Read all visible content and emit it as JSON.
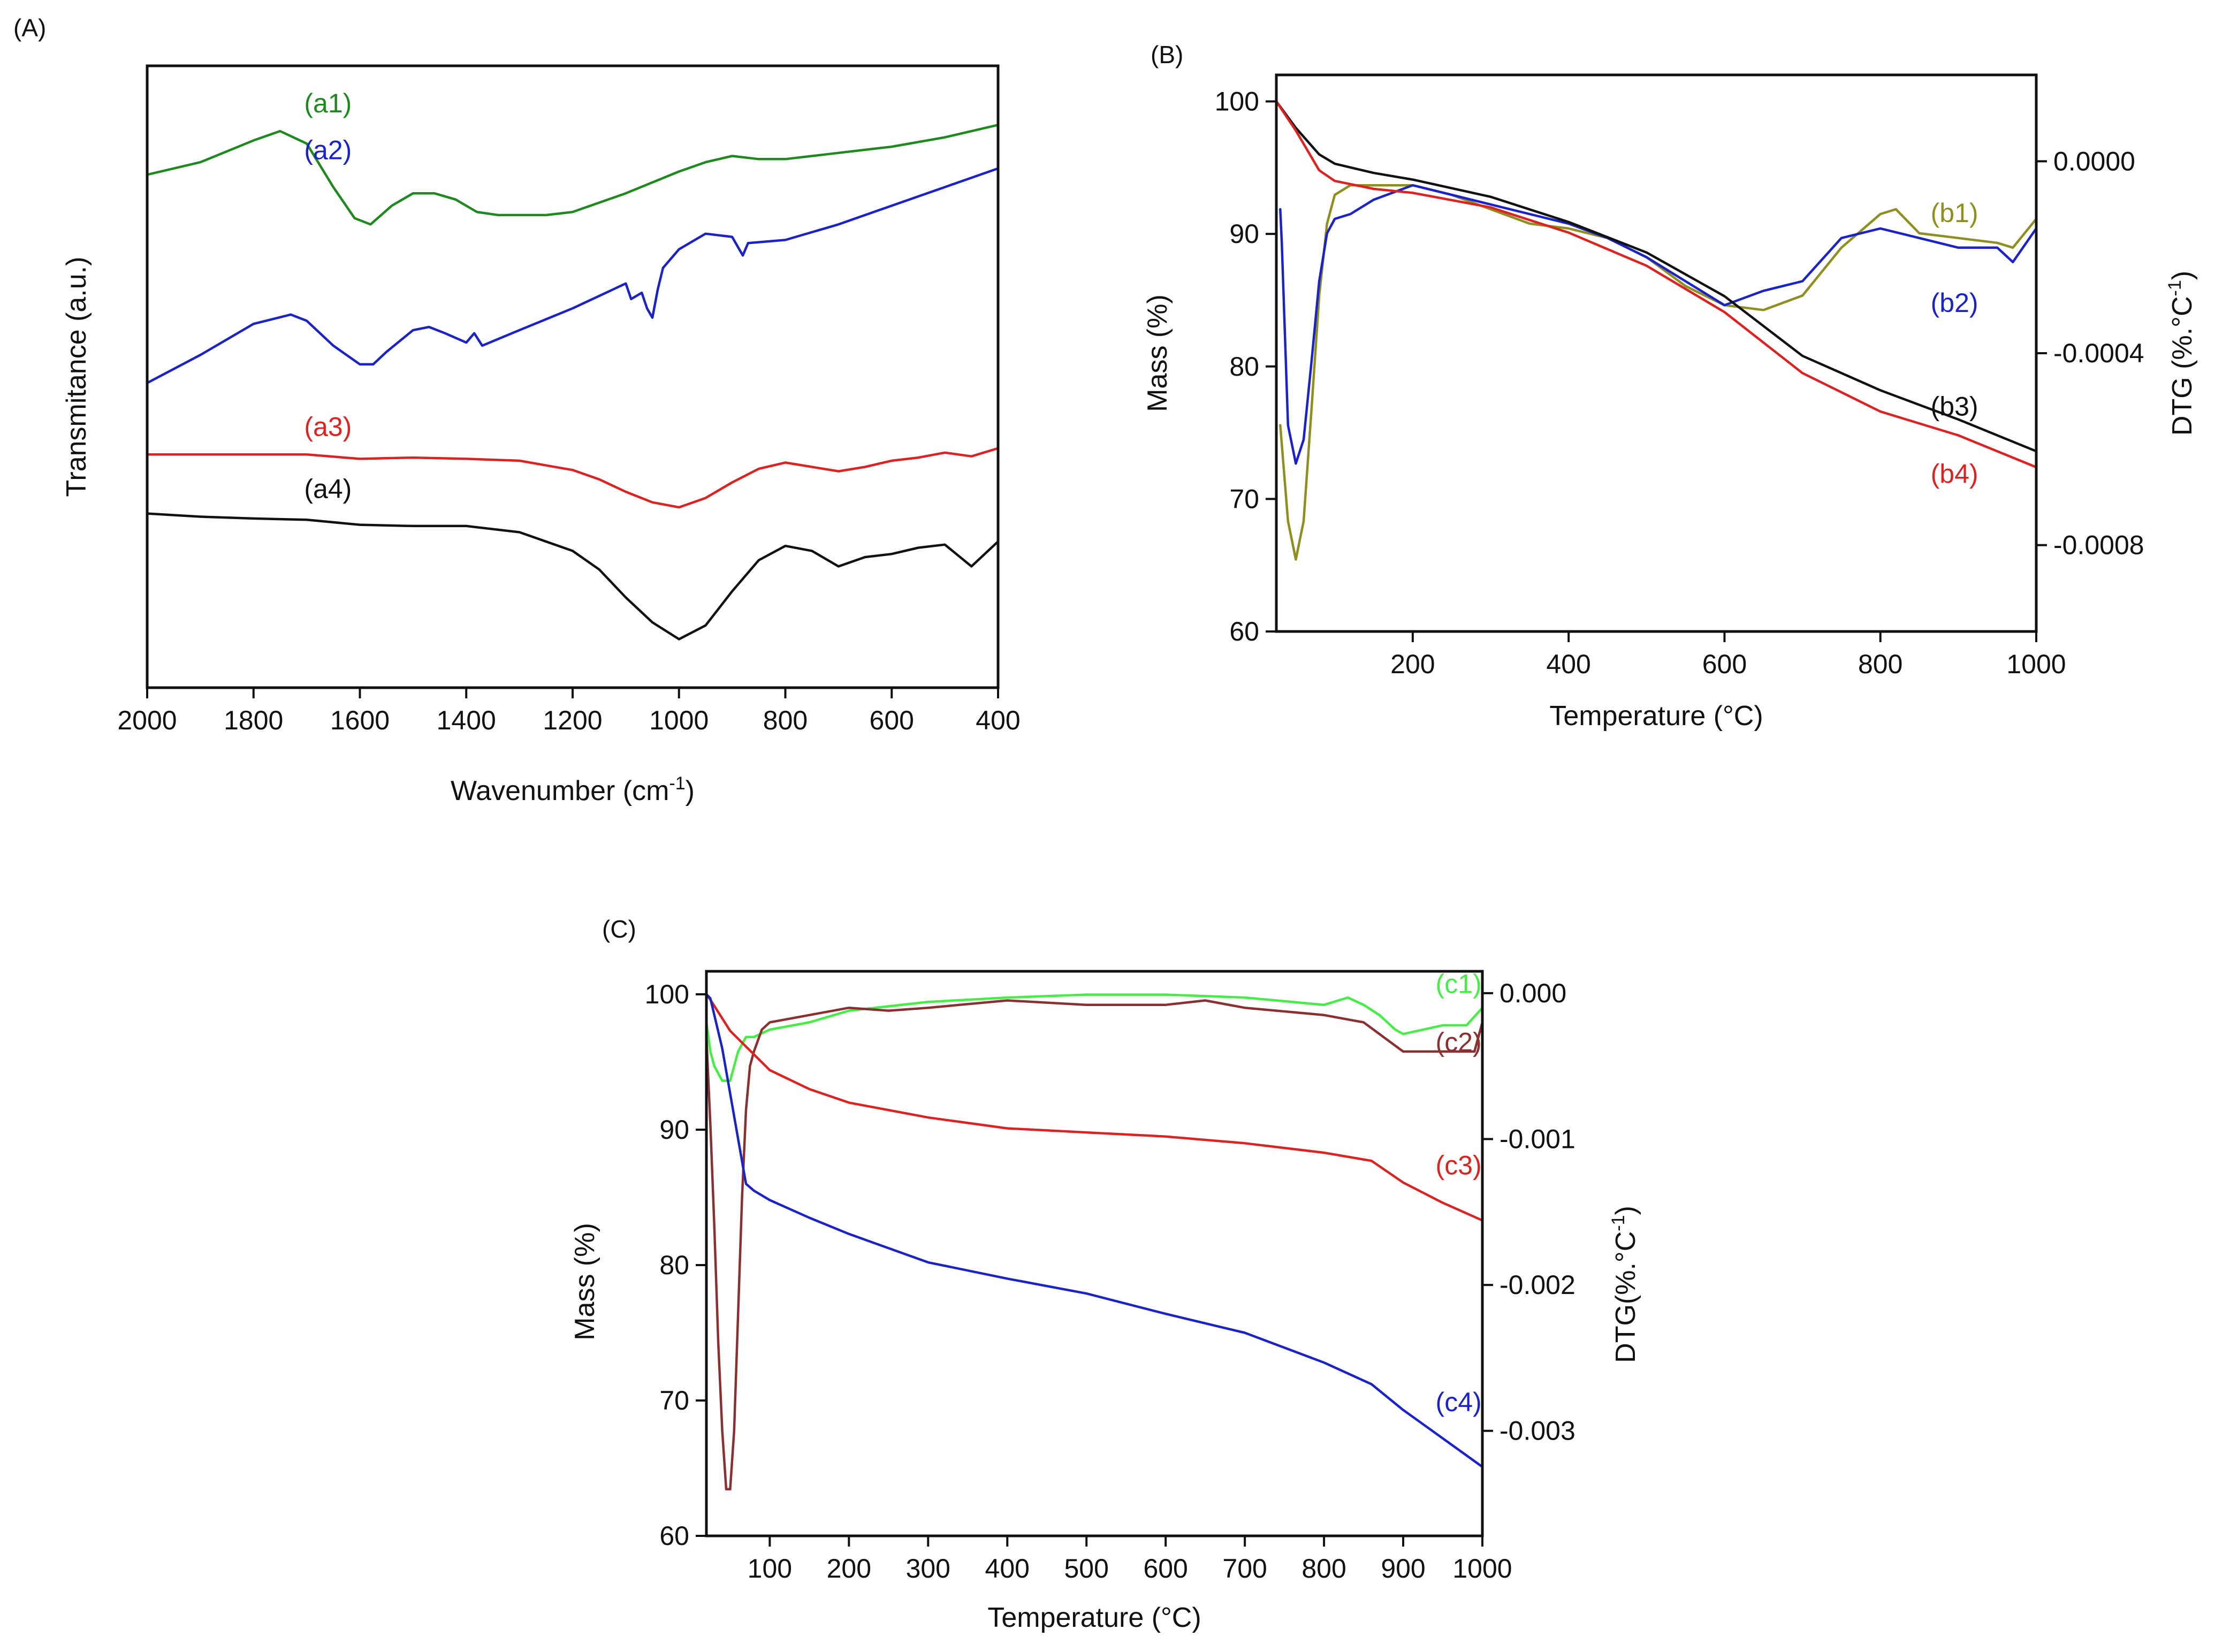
{
  "chart_data": [
    {
      "panel_label": "(A)",
      "type": "line",
      "xlabel": "Wavenumber (cm",
      "xlabel_sup": "-1",
      "xlabel_end": ")",
      "ylabel": "Transmitance (a.u.)",
      "xlim": [
        2000,
        400
      ],
      "ylim": [
        0,
        10
      ],
      "x_ticks": [
        2000,
        1800,
        1600,
        1400,
        1200,
        1000,
        800,
        600,
        400
      ],
      "x_tick_labels": [
        "2000",
        "1800",
        "1600",
        "1400",
        "1200",
        "1000",
        "800",
        "600",
        "400"
      ],
      "legend": "labels next to curves",
      "series": [
        {
          "name": "(a1)",
          "color": "#1e8a1e",
          "x": [
            2000,
            1900,
            1800,
            1750,
            1700,
            1650,
            1610,
            1580,
            1540,
            1500,
            1460,
            1420,
            1380,
            1340,
            1300,
            1250,
            1200,
            1100,
            1000,
            950,
            900,
            850,
            800,
            750,
            700,
            650,
            600,
            500,
            400
          ],
          "y": [
            8.25,
            8.45,
            8.8,
            8.95,
            8.75,
            8.05,
            7.55,
            7.45,
            7.75,
            7.95,
            7.95,
            7.85,
            7.65,
            7.6,
            7.6,
            7.6,
            7.65,
            7.95,
            8.3,
            8.45,
            8.55,
            8.5,
            8.5,
            8.55,
            8.6,
            8.65,
            8.7,
            8.85,
            9.05
          ]
        },
        {
          "name": "(a2)",
          "color": "#1a22c8",
          "x": [
            2000,
            1900,
            1800,
            1730,
            1700,
            1650,
            1600,
            1575,
            1550,
            1500,
            1470,
            1440,
            1400,
            1385,
            1370,
            1300,
            1200,
            1100,
            1090,
            1070,
            1060,
            1050,
            1040,
            1030,
            1000,
            950,
            900,
            880,
            870,
            800,
            700,
            600,
            500,
            400
          ],
          "y": [
            4.9,
            5.35,
            5.85,
            6.0,
            5.9,
            5.5,
            5.2,
            5.2,
            5.4,
            5.75,
            5.8,
            5.7,
            5.55,
            5.7,
            5.5,
            5.75,
            6.1,
            6.5,
            6.25,
            6.35,
            6.1,
            5.95,
            6.4,
            6.75,
            7.05,
            7.3,
            7.25,
            6.95,
            7.15,
            7.2,
            7.45,
            7.75,
            8.05,
            8.35
          ]
        },
        {
          "name": "(a3)",
          "color": "#dd2222",
          "x": [
            2000,
            1900,
            1800,
            1700,
            1600,
            1500,
            1400,
            1300,
            1200,
            1150,
            1100,
            1050,
            1000,
            950,
            900,
            850,
            800,
            750,
            700,
            650,
            600,
            550,
            500,
            450,
            400
          ],
          "y": [
            3.75,
            3.75,
            3.75,
            3.75,
            3.68,
            3.7,
            3.68,
            3.65,
            3.5,
            3.35,
            3.15,
            2.98,
            2.9,
            3.05,
            3.3,
            3.52,
            3.62,
            3.55,
            3.48,
            3.55,
            3.65,
            3.7,
            3.78,
            3.72,
            3.85
          ]
        },
        {
          "name": "(a4)",
          "color": "#111111",
          "x": [
            2000,
            1900,
            1800,
            1700,
            1600,
            1500,
            1400,
            1300,
            1200,
            1150,
            1100,
            1050,
            1000,
            950,
            900,
            850,
            800,
            750,
            700,
            650,
            600,
            550,
            500,
            450,
            400
          ],
          "y": [
            2.8,
            2.75,
            2.72,
            2.7,
            2.62,
            2.6,
            2.6,
            2.5,
            2.2,
            1.9,
            1.45,
            1.05,
            0.78,
            1.0,
            1.55,
            2.05,
            2.28,
            2.2,
            1.95,
            2.1,
            2.15,
            2.25,
            2.3,
            1.95,
            2.35
          ]
        }
      ],
      "curve_labels": [
        {
          "text": "(a1)",
          "x": 1660,
          "y": 9.25
        },
        {
          "text": "(a2)",
          "x": 1660,
          "y": 8.5
        },
        {
          "text": "(a3)",
          "x": 1660,
          "y": 4.05
        },
        {
          "text": "(a4)",
          "x": 1660,
          "y": 3.05
        }
      ]
    },
    {
      "panel_label": "(B)",
      "type": "line",
      "xlabel": "Temperature (°C)",
      "ylabel": "Mass (%)",
      "y2label": "DTG (%.°C",
      "y2label_sup": "-1",
      "y2label_end": ")",
      "xlim": [
        25,
        1000
      ],
      "ylim": [
        60,
        102
      ],
      "y2lim": [
        -0.00098,
        0.00018
      ],
      "x_ticks": [
        200,
        400,
        600,
        800,
        1000
      ],
      "x_tick_labels": [
        "200",
        "400",
        "600",
        "800",
        "1000"
      ],
      "y_ticks": [
        60,
        70,
        80,
        90,
        100
      ],
      "y_tick_labels": [
        "60",
        "70",
        "80",
        "90",
        "100"
      ],
      "y2_ticks": [
        0,
        -0.0004,
        -0.0008
      ],
      "y2_tick_labels": [
        "0.0000",
        "-0.0004",
        "-0.0008"
      ],
      "legend": "labels next to curves",
      "series": [
        {
          "name": "(b1)",
          "color": "#8f8f20",
          "axis": "right",
          "x": [
            30,
            40,
            50,
            60,
            70,
            80,
            90,
            100,
            120,
            150,
            200,
            250,
            300,
            350,
            400,
            450,
            500,
            550,
            600,
            650,
            700,
            750,
            800,
            820,
            850,
            900,
            950,
            970,
            1000
          ],
          "y": [
            -0.00055,
            -0.00075,
            -0.00083,
            -0.00075,
            -0.00052,
            -0.00028,
            -0.00013,
            -7e-05,
            -5e-05,
            -5e-05,
            -5e-05,
            -7e-05,
            -0.0001,
            -0.00013,
            -0.00014,
            -0.00016,
            -0.0002,
            -0.00026,
            -0.0003,
            -0.00031,
            -0.00028,
            -0.00018,
            -0.00011,
            -0.0001,
            -0.00015,
            -0.00016,
            -0.00017,
            -0.00018,
            -0.00012
          ]
        },
        {
          "name": "(b2)",
          "color": "#1a22c8",
          "axis": "right",
          "x": [
            30,
            32,
            40,
            50,
            60,
            70,
            80,
            90,
            100,
            120,
            150,
            200,
            250,
            300,
            350,
            400,
            450,
            500,
            550,
            600,
            650,
            700,
            750,
            800,
            850,
            900,
            950,
            970,
            1000
          ],
          "y": [
            -0.0001,
            -0.00017,
            -0.00055,
            -0.00063,
            -0.00058,
            -0.00042,
            -0.00025,
            -0.00015,
            -0.00012,
            -0.00011,
            -8e-05,
            -5e-05,
            -7e-05,
            -9e-05,
            -0.00011,
            -0.00013,
            -0.00016,
            -0.0002,
            -0.00025,
            -0.0003,
            -0.00027,
            -0.00025,
            -0.00016,
            -0.00014,
            -0.00016,
            -0.00018,
            -0.00018,
            -0.00021,
            -0.00014
          ]
        },
        {
          "name": "(b3)",
          "color": "#111111",
          "axis": "left",
          "x": [
            25,
            50,
            80,
            100,
            150,
            200,
            300,
            400,
            500,
            600,
            700,
            800,
            900,
            1000
          ],
          "y": [
            100.0,
            98.0,
            96.0,
            95.3,
            94.6,
            94.1,
            92.8,
            90.9,
            88.6,
            85.3,
            80.8,
            78.2,
            76.0,
            73.6
          ]
        },
        {
          "name": "(b4)",
          "color": "#dd2222",
          "axis": "left",
          "x": [
            25,
            50,
            80,
            100,
            150,
            200,
            300,
            400,
            500,
            600,
            700,
            800,
            900,
            1000
          ],
          "y": [
            100.0,
            97.8,
            94.8,
            94.0,
            93.4,
            93.1,
            92.0,
            90.1,
            87.6,
            84.1,
            79.5,
            76.6,
            74.8,
            72.4
          ]
        }
      ],
      "curve_labels": [
        {
          "text": "(b1)",
          "x": 895,
          "y": 90.9
        },
        {
          "text": "(b2)",
          "x": 895,
          "y": 84.1
        },
        {
          "text": "(b3)",
          "x": 895,
          "y": 76.3
        },
        {
          "text": "(b4)",
          "x": 895,
          "y": 71.2
        }
      ]
    },
    {
      "panel_label": "(C)",
      "type": "line",
      "xlabel": "Temperature (°C)",
      "ylabel": "Mass (%)",
      "y2label": "DTG(%.°C",
      "y2label_sup": "-1",
      "y2label_end": ")",
      "xlim": [
        20,
        1000
      ],
      "ylim": [
        60,
        101.7
      ],
      "y2lim": [
        -0.00372,
        0.00015
      ],
      "x_ticks": [
        100,
        200,
        300,
        400,
        500,
        600,
        700,
        800,
        900,
        1000
      ],
      "x_tick_labels": [
        "100",
        "200",
        "300",
        "400",
        "500",
        "600",
        "700",
        "800",
        "900",
        "1000"
      ],
      "y_ticks": [
        60,
        70,
        80,
        90,
        100
      ],
      "y_tick_labels": [
        "60",
        "70",
        "80",
        "90",
        "100"
      ],
      "y2_ticks": [
        0,
        -0.001,
        -0.002,
        -0.003
      ],
      "y2_tick_labels": [
        "0.000",
        "-0.001",
        "-0.002",
        "-0.003"
      ],
      "legend": "labels next to curves",
      "series": [
        {
          "name": "(c1)",
          "color": "#44ee44",
          "axis": "right",
          "x": [
            20,
            25,
            30,
            40,
            50,
            55,
            60,
            70,
            80,
            100,
            150,
            200,
            300,
            400,
            500,
            600,
            700,
            800,
            830,
            850,
            870,
            890,
            900,
            950,
            980,
            1000
          ],
          "y": [
            -0.0002,
            -0.0004,
            -0.0005,
            -0.0006,
            -0.0006,
            -0.0005,
            -0.0004,
            -0.0003,
            -0.0003,
            -0.00025,
            -0.0002,
            -0.00012,
            -6e-05,
            -3e-05,
            -1e-05,
            -1e-05,
            -3e-05,
            -8e-05,
            -3e-05,
            -8e-05,
            -0.00015,
            -0.00025,
            -0.00028,
            -0.00022,
            -0.00022,
            -0.0001
          ]
        },
        {
          "name": "(c2)",
          "color": "#8b3030",
          "axis": "right",
          "x": [
            20,
            25,
            30,
            35,
            40,
            45,
            50,
            55,
            60,
            65,
            70,
            75,
            80,
            90,
            100,
            150,
            200,
            250,
            300,
            400,
            500,
            600,
            650,
            700,
            800,
            850,
            900,
            950,
            980,
            990,
            1000
          ],
          "y": [
            -0.0003,
            -0.0009,
            -0.0016,
            -0.0024,
            -0.003,
            -0.0034,
            -0.0034,
            -0.003,
            -0.0022,
            -0.0014,
            -0.0008,
            -0.0005,
            -0.0004,
            -0.00025,
            -0.0002,
            -0.00015,
            -0.0001,
            -0.00012,
            -0.0001,
            -5e-05,
            -8e-05,
            -8e-05,
            -5e-05,
            -0.0001,
            -0.00015,
            -0.0002,
            -0.0004,
            -0.0004,
            -0.0004,
            -0.0004,
            -0.0002
          ]
        },
        {
          "name": "(c3)",
          "color": "#dd2222",
          "axis": "left",
          "x": [
            20,
            25,
            50,
            100,
            150,
            200,
            300,
            400,
            500,
            600,
            700,
            800,
            860,
            900,
            950,
            1000
          ],
          "y": [
            100.0,
            99.6,
            97.3,
            94.4,
            93.0,
            92.0,
            90.9,
            90.1,
            89.8,
            89.5,
            89.0,
            88.3,
            87.7,
            86.1,
            84.6,
            83.3
          ]
        },
        {
          "name": "(c4)",
          "color": "#1a22c8",
          "axis": "left",
          "x": [
            20,
            25,
            40,
            55,
            70,
            80,
            100,
            150,
            200,
            300,
            400,
            500,
            600,
            700,
            800,
            860,
            900,
            950,
            1000
          ],
          "y": [
            100.0,
            99.7,
            96.0,
            91.0,
            86.0,
            85.5,
            84.8,
            83.5,
            82.3,
            80.2,
            79.0,
            77.9,
            76.4,
            75.0,
            72.8,
            71.2,
            69.3,
            67.2,
            65.1
          ]
        }
      ],
      "curve_labels": [
        {
          "text": "(c1)",
          "x": 970,
          "y": 100.1
        },
        {
          "text": "(c2)",
          "x": 970,
          "y": 95.8
        },
        {
          "text": "(c3)",
          "x": 970,
          "y": 86.7
        },
        {
          "text": "(c4)",
          "x": 970,
          "y": 69.2
        }
      ]
    }
  ]
}
